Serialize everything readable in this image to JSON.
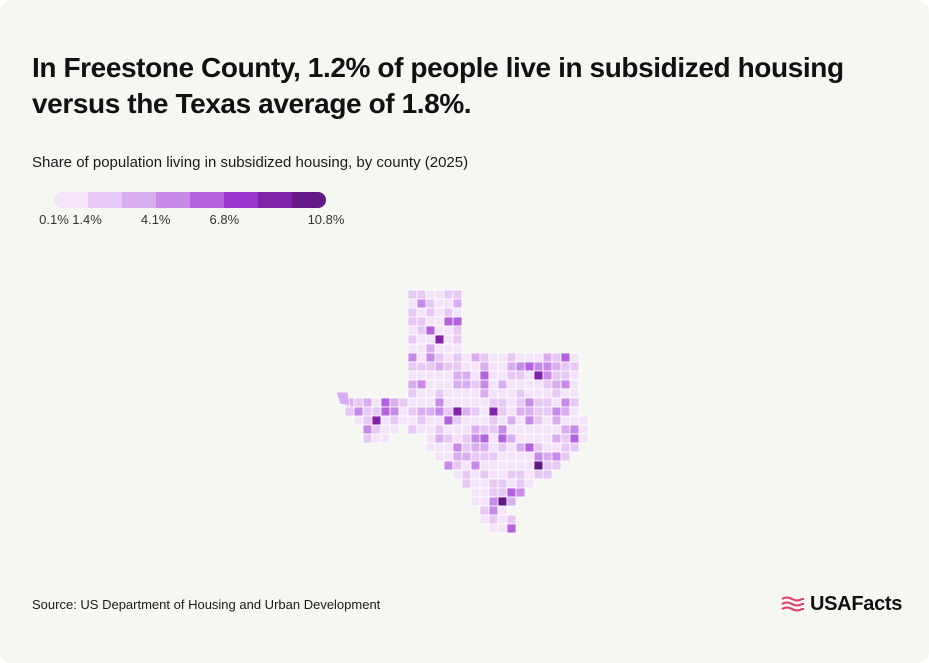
{
  "headline": "In Freestone County, 1.2% of people live in subsidized housing versus the Texas average of 1.8%.",
  "subtitle": "Share of population living in subsidized housing, by county (2025)",
  "legend": {
    "colors": [
      "#f3e4fa",
      "#e7c9f5",
      "#d9aef0",
      "#c88ae8",
      "#b461dd",
      "#9a34cf",
      "#7f23ab",
      "#631a86"
    ],
    "ticks": [
      {
        "label": "0.1%",
        "value": 0.1
      },
      {
        "label": "1.4%",
        "value": 1.4
      },
      {
        "label": "4.1%",
        "value": 4.1
      },
      {
        "label": "6.8%",
        "value": 6.8
      },
      {
        "label": "10.8%",
        "value": 10.8
      }
    ],
    "min": 0.1,
    "max": 10.8
  },
  "map": {
    "region": "Texas",
    "unit": "county",
    "highlight_colors": {
      "low": "#f3e4fa",
      "mid": "#c88ae8",
      "high": "#631a86"
    }
  },
  "source": "Source: US Department of Housing and Urban Development",
  "brand": {
    "name": "USAFacts",
    "accent": "#e23b6b"
  }
}
